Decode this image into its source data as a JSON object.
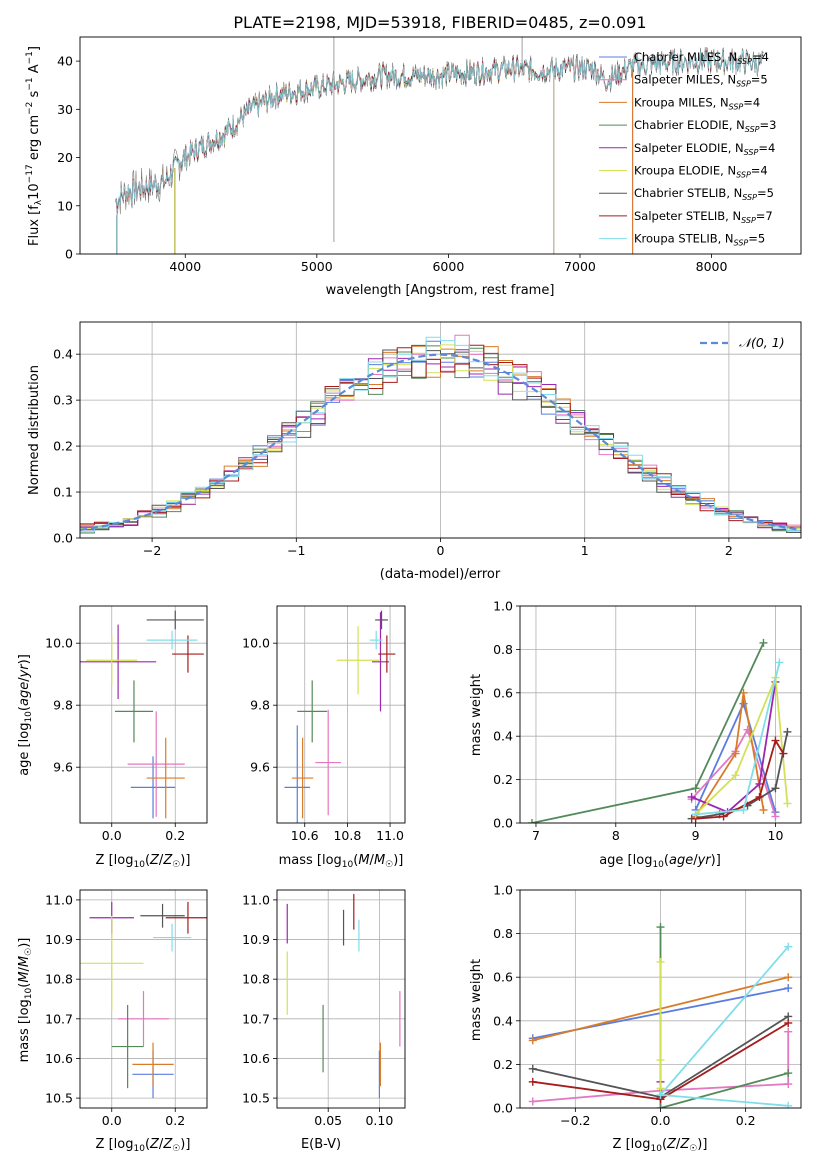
{
  "figure": {
    "title": "PLATE=2198, MJD=53918, FIBERID=0485, z=0.091"
  },
  "colors": {
    "Chabrier MILES": "#5b7de0",
    "Salpeter MILES": "#e377c2",
    "Kroupa MILES": "#d97c2a",
    "Chabrier ELODIE": "#548a5a",
    "Salpeter ELODIE": "#9c27b0",
    "Kroupa ELODIE": "#d4e157",
    "Chabrier STELIB": "#555555",
    "Salpeter STELIB": "#a51d1d",
    "Kroupa STELIB": "#80deea"
  },
  "chart_data": [
    {
      "id": "spectrum",
      "type": "line",
      "title": "PLATE=2198, MJD=53918, FIBERID=0485, z=0.091",
      "xlabel": "wavelength [Angstrom, rest frame]",
      "ylabel": "Flux [f_λ 10^-17 erg cm^-2 s^-1 A^-1]",
      "xlim": [
        3200,
        8680
      ],
      "ylim": [
        0,
        45
      ],
      "xticks": [
        "4000",
        "5000",
        "6000",
        "7000",
        "8000"
      ],
      "yticks": [
        "0",
        "10",
        "20",
        "30",
        "40"
      ],
      "grid": false,
      "legend_position": "top-right",
      "legend": [
        {
          "label": "Chabrier MILES, N",
          "sub": "SSP",
          "suffix": "=4"
        },
        {
          "label": "Salpeter MILES, N",
          "sub": "SSP",
          "suffix": "=5"
        },
        {
          "label": "Kroupa MILES, N",
          "sub": "SSP",
          "suffix": "=4"
        },
        {
          "label": "Chabrier ELODIE, N",
          "sub": "SSP",
          "suffix": "=3"
        },
        {
          "label": "Salpeter ELODIE, N",
          "sub": "SSP",
          "suffix": "=4"
        },
        {
          "label": "Kroupa ELODIE, N",
          "sub": "SSP",
          "suffix": "=4"
        },
        {
          "label": "Chabrier STELIB, N",
          "sub": "SSP",
          "suffix": "=5"
        },
        {
          "label": "Salpeter STELIB, N",
          "sub": "SSP",
          "suffix": "=7"
        },
        {
          "label": "Kroupa STELIB, N",
          "sub": "SSP",
          "suffix": "=5"
        }
      ],
      "continuum": [
        [
          3470,
          11
        ],
        [
          3560,
          13
        ],
        [
          3700,
          14
        ],
        [
          3850,
          15
        ],
        [
          3950,
          19
        ],
        [
          4100,
          22
        ],
        [
          4300,
          25
        ],
        [
          4500,
          30
        ],
        [
          4700,
          33
        ],
        [
          4900,
          34
        ],
        [
          5100,
          35
        ],
        [
          5300,
          36
        ],
        [
          5500,
          37
        ],
        [
          5700,
          37
        ],
        [
          5900,
          37
        ],
        [
          6100,
          37.5
        ],
        [
          6300,
          38
        ],
        [
          6500,
          38.5
        ],
        [
          6700,
          38
        ],
        [
          6900,
          38.5
        ],
        [
          7100,
          38.5
        ],
        [
          7200,
          36
        ],
        [
          7400,
          39
        ],
        [
          7600,
          39.5
        ],
        [
          7800,
          40
        ],
        [
          8000,
          40
        ],
        [
          8200,
          40
        ],
        [
          8400,
          39.5
        ]
      ],
      "series_ranges": [
        {
          "name": "Chabrier MILES",
          "x": [
            3470,
            7400
          ]
        },
        {
          "name": "Salpeter MILES",
          "x": [
            3470,
            7400
          ]
        },
        {
          "name": "Kroupa MILES",
          "x": [
            3470,
            7400
          ]
        },
        {
          "name": "Chabrier ELODIE",
          "x": [
            3920,
            6800
          ]
        },
        {
          "name": "Salpeter ELODIE",
          "x": [
            3920,
            6800
          ]
        },
        {
          "name": "Kroupa ELODIE",
          "x": [
            3920,
            6800
          ]
        },
        {
          "name": "Chabrier STELIB",
          "x": [
            3470,
            8400
          ]
        },
        {
          "name": "Salpeter STELIB",
          "x": [
            3470,
            8400
          ]
        },
        {
          "name": "Kroupa STELIB",
          "x": [
            3470,
            8400
          ]
        }
      ],
      "data_spikes": [
        [
          5130,
          2.5,
          45
        ],
        [
          6560,
          37,
          45
        ]
      ]
    },
    {
      "id": "residuals",
      "type": "line",
      "xlabel": "(data-model)/error",
      "ylabel": "Normed distribution",
      "xlim": [
        -2.5,
        2.5
      ],
      "ylim": [
        0,
        0.47
      ],
      "xticks": [
        "−2",
        "−1",
        "0",
        "1",
        "2"
      ],
      "yticks": [
        "0.0",
        "0.1",
        "0.2",
        "0.3",
        "0.4"
      ],
      "grid": true,
      "legend_position": "top-right",
      "legend_label": "𝒩(0, 1)",
      "reference_curve": "gaussian mean 0 sigma 1",
      "bin_width": 0.1
    },
    {
      "id": "age-vs-Z",
      "type": "errorbar",
      "xlabel": "Z [log10(Z/Z☉)]",
      "ylabel": "age  [log10(age/yr)]",
      "xlim": [
        -0.1,
        0.3
      ],
      "ylim": [
        9.42,
        10.12
      ],
      "xticks": [
        "0.0",
        "0.2"
      ],
      "yticks": [
        "9.6",
        "9.8",
        "10.0"
      ],
      "grid": true,
      "points": [
        {
          "name": "Chabrier MILES",
          "x": 0.13,
          "xerr": 0.07,
          "y": 9.535,
          "yerr": 0.1
        },
        {
          "name": "Salpeter MILES",
          "x": 0.14,
          "xerr": 0.09,
          "y": 9.61,
          "yerr": 0.17
        },
        {
          "name": "Kroupa MILES",
          "x": 0.17,
          "xerr": 0.06,
          "y": 9.565,
          "yerr": 0.13
        },
        {
          "name": "Chabrier ELODIE",
          "x": 0.07,
          "xerr": 0.06,
          "y": 9.78,
          "yerr": 0.1
        },
        {
          "name": "Salpeter ELODIE",
          "x": 0.02,
          "xerr": 0.12,
          "y": 9.94,
          "yerr": 0.12
        },
        {
          "name": "Kroupa ELODIE",
          "x": 0.0,
          "xerr": 0.08,
          "y": 9.945,
          "yerr": 0.08
        },
        {
          "name": "Chabrier STELIB",
          "x": 0.2,
          "xerr": 0.09,
          "y": 10.075,
          "yerr": 0.03
        },
        {
          "name": "Salpeter STELIB",
          "x": 0.24,
          "xerr": 0.05,
          "y": 9.965,
          "yerr": 0.06
        },
        {
          "name": "Kroupa STELIB",
          "x": 0.19,
          "xerr": 0.08,
          "y": 10.01,
          "yerr": 0.03
        }
      ]
    },
    {
      "id": "age-vs-mass",
      "type": "errorbar",
      "xlabel": "mass [log10(M/M☉)]",
      "xlim": [
        10.47,
        11.07
      ],
      "ylim": [
        9.42,
        10.12
      ],
      "xticks": [
        "10.6",
        "10.8",
        "11.0"
      ],
      "yticks": [
        "9.6",
        "9.8",
        "10.0"
      ],
      "grid": true,
      "points": [
        {
          "name": "Chabrier MILES",
          "x": 10.565,
          "xerr": 0.06,
          "y": 9.535,
          "yerr": 0.2
        },
        {
          "name": "Salpeter MILES",
          "x": 10.71,
          "xerr": 0.06,
          "y": 9.615,
          "yerr": 0.17
        },
        {
          "name": "Kroupa MILES",
          "x": 10.59,
          "xerr": 0.05,
          "y": 9.565,
          "yerr": 0.13
        },
        {
          "name": "Chabrier ELODIE",
          "x": 10.635,
          "xerr": 0.07,
          "y": 9.78,
          "yerr": 0.1
        },
        {
          "name": "Salpeter ELODIE",
          "x": 10.955,
          "xerr": 0.04,
          "y": 9.94,
          "yerr": 0.16
        },
        {
          "name": "Kroupa ELODIE",
          "x": 10.85,
          "xerr": 0.1,
          "y": 9.945,
          "yerr": 0.11
        },
        {
          "name": "Chabrier STELIB",
          "x": 10.96,
          "xerr": 0.03,
          "y": 10.075,
          "yerr": 0.03
        },
        {
          "name": "Salpeter STELIB",
          "x": 10.985,
          "xerr": 0.04,
          "y": 9.965,
          "yerr": 0.06
        },
        {
          "name": "Kroupa STELIB",
          "x": 10.935,
          "xerr": 0.03,
          "y": 10.01,
          "yerr": 0.03
        }
      ]
    },
    {
      "id": "massweight-vs-age",
      "type": "line",
      "xlabel": "age  [log10(age/yr)]",
      "ylabel": "mass weight",
      "xlim": [
        6.8,
        10.32
      ],
      "ylim": [
        0,
        1.0
      ],
      "xticks": [
        "7",
        "8",
        "9",
        "10"
      ],
      "yticks": [
        "0.0",
        "0.2",
        "0.4",
        "0.6",
        "0.8",
        "1.0"
      ],
      "grid": true,
      "series": [
        {
          "name": "Chabrier MILES",
          "x": [
            9.0,
            9.6,
            10.0
          ],
          "y": [
            0.06,
            0.55,
            0.05
          ]
        },
        {
          "name": "Salpeter MILES",
          "x": [
            8.95,
            9.5,
            9.65,
            10.0
          ],
          "y": [
            0.11,
            0.33,
            0.43,
            0.03
          ]
        },
        {
          "name": "Kroupa MILES",
          "x": [
            9.0,
            9.5,
            9.6,
            9.85
          ],
          "y": [
            0.03,
            0.32,
            0.6,
            0.06
          ]
        },
        {
          "name": "Chabrier ELODIE",
          "x": [
            6.95,
            9.0,
            9.85
          ],
          "y": [
            0.0,
            0.16,
            0.83
          ]
        },
        {
          "name": "Salpeter ELODIE",
          "x": [
            8.95,
            9.4,
            9.8,
            10.0
          ],
          "y": [
            0.12,
            0.05,
            0.18,
            0.65
          ]
        },
        {
          "name": "Kroupa ELODIE",
          "x": [
            9.0,
            9.5,
            10.0,
            10.15
          ],
          "y": [
            0.04,
            0.22,
            0.67,
            0.09
          ]
        },
        {
          "name": "Chabrier STELIB",
          "x": [
            8.95,
            9.3,
            9.65,
            10.0,
            10.15
          ],
          "y": [
            0.02,
            0.04,
            0.08,
            0.16,
            0.42
          ]
        },
        {
          "name": "Salpeter STELIB",
          "x": [
            9.0,
            9.35,
            9.8,
            10.0,
            10.1
          ],
          "y": [
            0.02,
            0.03,
            0.12,
            0.38,
            0.32
          ]
        },
        {
          "name": "Kroupa STELIB",
          "x": [
            9.0,
            9.6,
            10.05
          ],
          "y": [
            0.04,
            0.06,
            0.74
          ]
        }
      ]
    },
    {
      "id": "mass-vs-Z",
      "type": "errorbar",
      "xlabel": "Z [log10(Z/Z☉)]",
      "ylabel": "mass [log10(M/M☉)]",
      "xlim": [
        -0.1,
        0.3
      ],
      "ylim": [
        10.475,
        11.025
      ],
      "xticks": [
        "0.0",
        "0.2"
      ],
      "yticks": [
        "10.5",
        "10.6",
        "10.7",
        "10.8",
        "10.9",
        "11.0"
      ],
      "grid": true,
      "points": [
        {
          "name": "Chabrier MILES",
          "x": 0.13,
          "xerr": 0.065,
          "y": 10.56,
          "yerr": 0.06
        },
        {
          "name": "Salpeter MILES",
          "x": 0.1,
          "xerr": 0.08,
          "y": 10.7,
          "yerr": 0.07
        },
        {
          "name": "Kroupa MILES",
          "x": 0.13,
          "xerr": 0.065,
          "y": 10.585,
          "yerr": 0.055
        },
        {
          "name": "Chabrier ELODIE",
          "x": 0.05,
          "xerr": 0.05,
          "y": 10.63,
          "yerr": 0.105
        },
        {
          "name": "Salpeter ELODIE",
          "x": 0.0,
          "xerr": 0.07,
          "y": 10.955,
          "yerr": 0.04
        },
        {
          "name": "Kroupa ELODIE",
          "x": 0.0,
          "xerr": 0.1,
          "y": 10.84,
          "yerr": 0.12
        },
        {
          "name": "Chabrier STELIB",
          "x": 0.16,
          "xerr": 0.07,
          "y": 10.96,
          "yerr": 0.03
        },
        {
          "name": "Salpeter STELIB",
          "x": 0.24,
          "xerr": 0.07,
          "y": 10.955,
          "yerr": 0.04
        },
        {
          "name": "Kroupa STELIB",
          "x": 0.19,
          "xerr": 0.06,
          "y": 10.905,
          "yerr": 0.035
        }
      ]
    },
    {
      "id": "mass-vs-EBV",
      "type": "errorbar",
      "xlabel": "E(B-V)",
      "xlim": [
        0.0,
        0.125
      ],
      "ylim": [
        10.475,
        11.025
      ],
      "xticks": [
        "0.05",
        "0.10"
      ],
      "yticks": [
        "10.5",
        "10.6",
        "10.7",
        "10.8",
        "10.9",
        "11.0"
      ],
      "grid": true,
      "points": [
        {
          "name": "Chabrier MILES",
          "x": 0.1,
          "xerr": 0,
          "y": 10.56,
          "yerr": 0.06
        },
        {
          "name": "Salpeter MILES",
          "x": 0.12,
          "xerr": 0,
          "y": 10.7,
          "yerr": 0.07
        },
        {
          "name": "Kroupa MILES",
          "x": 0.101,
          "xerr": 0,
          "y": 10.585,
          "yerr": 0.055
        },
        {
          "name": "Chabrier ELODIE",
          "x": 0.045,
          "xerr": 0,
          "y": 10.65,
          "yerr": 0.085
        },
        {
          "name": "Salpeter ELODIE",
          "x": 0.01,
          "xerr": 0,
          "y": 10.94,
          "yerr": 0.05
        },
        {
          "name": "Kroupa ELODIE",
          "x": 0.01,
          "xerr": 0,
          "y": 10.79,
          "yerr": 0.08
        },
        {
          "name": "Chabrier STELIB",
          "x": 0.065,
          "xerr": 0,
          "y": 10.93,
          "yerr": 0.045
        },
        {
          "name": "Salpeter STELIB",
          "x": 0.075,
          "xerr": 0,
          "y": 10.97,
          "yerr": 0.045
        },
        {
          "name": "Kroupa STELIB",
          "x": 0.08,
          "xerr": 0,
          "y": 10.91,
          "yerr": 0.04
        }
      ]
    },
    {
      "id": "massweight-vs-Z",
      "type": "line",
      "xlabel": "Z [log10(Z/Z☉)]",
      "ylabel": "mass weight",
      "xlim": [
        -0.33,
        0.33
      ],
      "ylim": [
        0,
        1.0
      ],
      "xticks": [
        "−0.2",
        "0.0",
        "0.2"
      ],
      "yticks": [
        "0.0",
        "0.2",
        "0.4",
        "0.6",
        "0.8",
        "1.0"
      ],
      "grid": true,
      "series": [
        {
          "name": "Chabrier MILES",
          "x": [
            -0.3,
            0.3
          ],
          "y": [
            0.32,
            0.55
          ]
        },
        {
          "name": "Salpeter MILES",
          "x": [
            -0.3,
            0.0,
            0.3,
            0.3
          ],
          "y": [
            0.03,
            0.08,
            0.11,
            0.35
          ]
        },
        {
          "name": "Kroupa MILES",
          "x": [
            -0.3,
            0.3
          ],
          "y": [
            0.31,
            0.6
          ]
        },
        {
          "name": "Chabrier ELODIE",
          "x": [
            0.0,
            0.0,
            0.3
          ],
          "y": [
            0.83,
            0.0,
            0.16
          ]
        },
        {
          "name": "Salpeter ELODIE",
          "x": [
            0.0,
            0.0
          ],
          "y": [
            0.12,
            0.05
          ]
        },
        {
          "name": "Kroupa ELODIE",
          "x": [
            0.0,
            0.0,
            0.0
          ],
          "y": [
            0.67,
            0.22,
            0.09
          ]
        },
        {
          "name": "Chabrier STELIB",
          "x": [
            -0.3,
            0.0,
            0.3
          ],
          "y": [
            0.18,
            0.05,
            0.42
          ]
        },
        {
          "name": "Salpeter STELIB",
          "x": [
            -0.3,
            0.0,
            0.3
          ],
          "y": [
            0.12,
            0.04,
            0.39
          ]
        },
        {
          "name": "Kroupa STELIB",
          "x": [
            0.3,
            0.0,
            0.3
          ],
          "y": [
            0.74,
            0.06,
            0.01
          ]
        }
      ]
    }
  ]
}
